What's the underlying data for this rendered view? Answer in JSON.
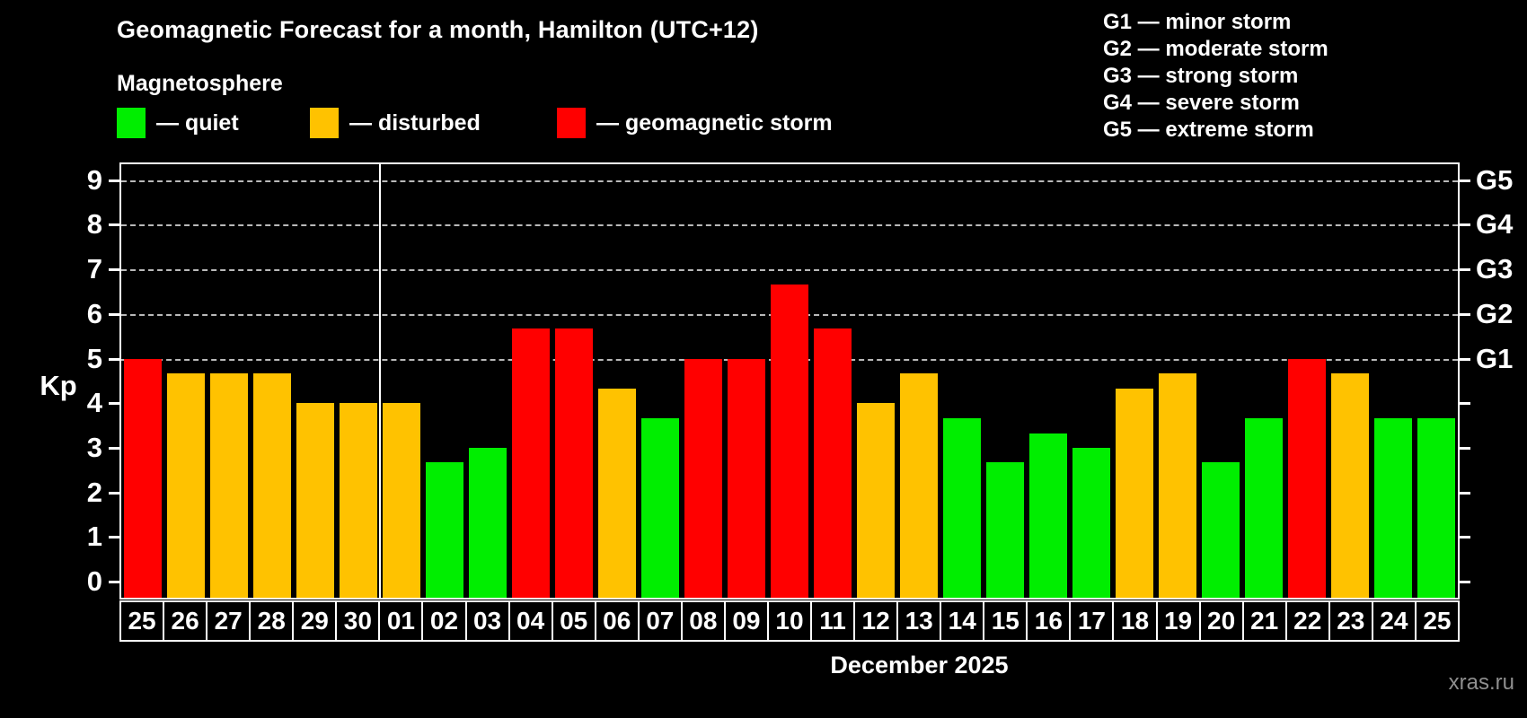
{
  "header": {
    "title": "Geomagnetic Forecast for a month, Hamilton (UTC+12)",
    "subtitle": "Magnetosphere",
    "watermark": "xras.ru"
  },
  "legend": {
    "items": [
      {
        "status": "quiet",
        "label": "— quiet"
      },
      {
        "status": "disturbed",
        "label": "— disturbed"
      },
      {
        "status": "storm",
        "label": "— geomagnetic storm"
      }
    ]
  },
  "status_colors": {
    "quiet": "#00ee00",
    "disturbed": "#ffc200",
    "storm": "#ff0000"
  },
  "g_scale_legend": [
    "G1 — minor storm",
    "G2 — moderate storm",
    "G3 — strong storm",
    "G4 — severe storm",
    "G5 — extreme storm"
  ],
  "chart_data": {
    "type": "bar",
    "title": "Geomagnetic Forecast for a month, Hamilton (UTC+12)",
    "ylabel": "Kp",
    "xlabel": "December 2025",
    "ylim": [
      0,
      9.4
    ],
    "yticks": [
      0,
      1,
      2,
      3,
      4,
      5,
      6,
      7,
      8,
      9
    ],
    "gridlines_at": [
      5,
      6,
      7,
      8,
      9
    ],
    "right_axis": [
      {
        "kp": 5,
        "label": "G1"
      },
      {
        "kp": 6,
        "label": "G2"
      },
      {
        "kp": 7,
        "label": "G3"
      },
      {
        "kp": 8,
        "label": "G4"
      },
      {
        "kp": 9,
        "label": "G5"
      }
    ],
    "month_separator_after_index": 5,
    "categories": [
      "25",
      "26",
      "27",
      "28",
      "29",
      "30",
      "01",
      "02",
      "03",
      "04",
      "05",
      "06",
      "07",
      "08",
      "09",
      "10",
      "11",
      "12",
      "13",
      "14",
      "15",
      "16",
      "17",
      "18",
      "19",
      "20",
      "21",
      "22",
      "23",
      "24",
      "25"
    ],
    "values": [
      5,
      4.67,
      4.67,
      4.67,
      4,
      4,
      4,
      2.67,
      3,
      5.67,
      5.67,
      4.33,
      3.67,
      5,
      5,
      6.67,
      5.67,
      4,
      4.67,
      3.67,
      2.67,
      3.33,
      3,
      4.33,
      4.67,
      2.67,
      3.67,
      5,
      4.67,
      3.67,
      3.67
    ],
    "statuses": [
      "storm",
      "disturbed",
      "disturbed",
      "disturbed",
      "disturbed",
      "disturbed",
      "disturbed",
      "quiet",
      "quiet",
      "storm",
      "storm",
      "disturbed",
      "quiet",
      "storm",
      "storm",
      "storm",
      "storm",
      "disturbed",
      "disturbed",
      "quiet",
      "quiet",
      "quiet",
      "quiet",
      "disturbed",
      "disturbed",
      "quiet",
      "quiet",
      "storm",
      "disturbed",
      "quiet",
      "quiet"
    ]
  }
}
